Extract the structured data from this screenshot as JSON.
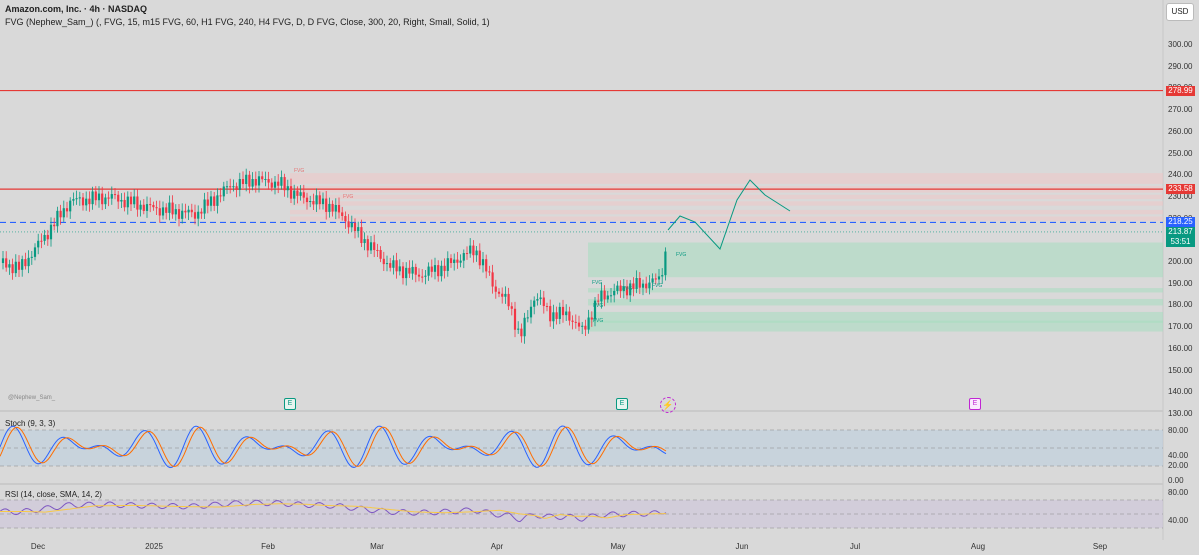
{
  "header": {
    "title": "Amazon.com, Inc. · 4h · NASDAQ",
    "indicator": "FVG (Nephew_Sam_) (, FVG, 15, m15 FVG, 60, H1 FVG, 240, H4 FVG, D, D FVG, Close, 300, 20, Right, Small, Solid, 1)"
  },
  "currency_button": "USD",
  "watermark": "@Nephew_Sam_",
  "price_axis": [
    "300.00",
    "290.00",
    "280.00",
    "270.00",
    "260.00",
    "250.00",
    "240.00",
    "230.00",
    "220.00",
    "210.00",
    "200.00",
    "190.00",
    "180.00",
    "170.00",
    "160.00",
    "150.00",
    "140.00",
    "130.00"
  ],
  "price_tags": [
    {
      "value": "278.99",
      "color": "#e53935"
    },
    {
      "value": "233.58",
      "color": "#e53935"
    },
    {
      "value": "218.25",
      "color": "#2962ff"
    },
    {
      "value": "213.87",
      "color": "#089981"
    },
    {
      "value": "53:51",
      "color": "#089981"
    }
  ],
  "time_axis": [
    "Dec",
    "2025",
    "Feb",
    "Mar",
    "Apr",
    "May",
    "Jun",
    "Jul",
    "Aug",
    "Sep"
  ],
  "fvg_label": "FVG",
  "stoch": {
    "label": "Stoch (9, 3, 3)",
    "axis": [
      "80.00",
      "40.00",
      "20.00",
      "0.00"
    ]
  },
  "rsi": {
    "label": "RSI (14, close, SMA, 14, 2)",
    "axis": [
      "80.00",
      "40.00"
    ]
  },
  "earnings_badge": "E",
  "colors": {
    "up": "#089981",
    "down": "#f23645",
    "hline": "#e53935",
    "dash": "#2962ff",
    "stoch_k": "#2962ff",
    "stoch_d": "#ff6d00",
    "rsi": "#7e57c2"
  }
}
